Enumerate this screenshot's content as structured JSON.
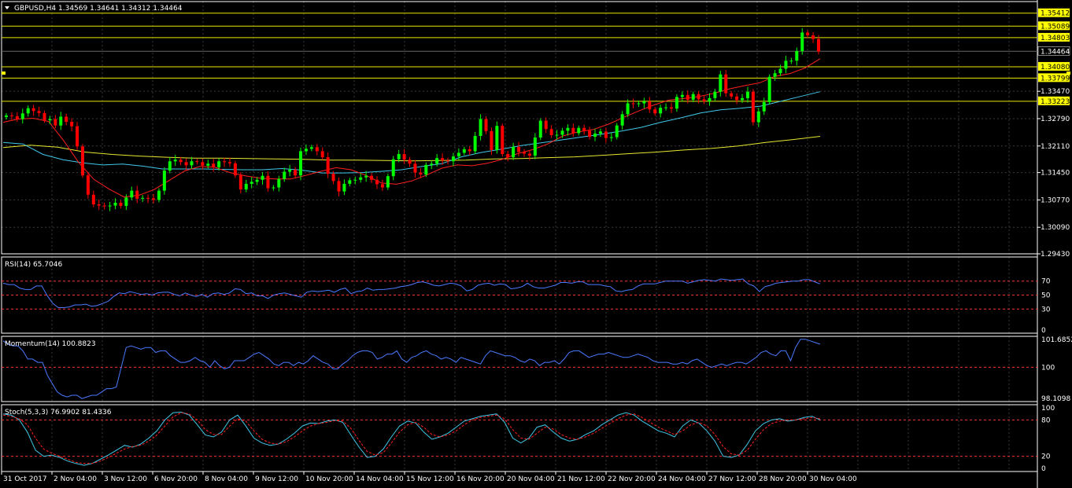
{
  "colors": {
    "background": "#000000",
    "grid": "#3a3a3a",
    "frame": "#ffffff",
    "bull": "#00ff00",
    "bear": "#ff0000",
    "ma_fast": "#ff2020",
    "ma_mid": "#40c8e8",
    "ma_slow": "#e8e830",
    "level": "#e8e800",
    "rsi": "#4a7aff",
    "momentum": "#4a7aff",
    "stoch_main": "#40c8e8",
    "stoch_signal": "#ff2020",
    "ref_line": "#ff3030",
    "text": "#ffffff",
    "level_tag_bg": "#ffff00",
    "level_tag_text": "#000000",
    "current_tag_bg": "#000000",
    "current_tag_text": "#ffffff"
  },
  "chart_data": [
    {
      "type": "candlestick",
      "title": "GBPUSD,H4  1.34569 1.34641 1.34312 1.34464",
      "price_ticks": [
        "1.33470",
        "1.32790",
        "1.32110",
        "1.31450",
        "1.30770",
        "1.30090",
        "1.29430"
      ],
      "ylim": [
        1.2943,
        1.357
      ],
      "levels": [
        "1.35412",
        "1.35089",
        "1.34803",
        "1.34080",
        "1.33799",
        "1.33223"
      ],
      "current_price": "1.34464",
      "x_labels": [
        "31 Oct 2017",
        "2 Nov 04:00",
        "3 Nov 12:00",
        "6 Nov 20:00",
        "8 Nov 04:00",
        "9 Nov 12:00",
        "10 Nov 20:00",
        "14 Nov 04:00",
        "15 Nov 12:00",
        "16 Nov 20:00",
        "20 Nov 04:00",
        "21 Nov 12:00",
        "22 Nov 20:00",
        "24 Nov 04:00",
        "27 Nov 12:00",
        "28 Nov 20:00",
        "30 Nov 04:00"
      ],
      "closes": [
        1.3287,
        1.3285,
        1.3278,
        1.3292,
        1.3305,
        1.3298,
        1.3293,
        1.3275,
        1.3278,
        1.3262,
        1.3284,
        1.3271,
        1.326,
        1.321,
        1.3138,
        1.309,
        1.3066,
        1.3063,
        1.3061,
        1.3063,
        1.307,
        1.3062,
        1.3083,
        1.31,
        1.308,
        1.3082,
        1.3081,
        1.3077,
        1.31,
        1.315,
        1.3173,
        1.3177,
        1.3171,
        1.3163,
        1.3173,
        1.3171,
        1.3162,
        1.3167,
        1.3158,
        1.3173,
        1.3171,
        1.3168,
        1.3138,
        1.3103,
        1.3117,
        1.3122,
        1.3127,
        1.3137,
        1.3106,
        1.3108,
        1.3129,
        1.3147,
        1.3152,
        1.3138,
        1.3198,
        1.3204,
        1.3208,
        1.3198,
        1.3183,
        1.3142,
        1.3124,
        1.3098,
        1.3117,
        1.3126,
        1.3127,
        1.3133,
        1.3137,
        1.3127,
        1.3116,
        1.3108,
        1.3136,
        1.3178,
        1.3191,
        1.3177,
        1.3167,
        1.3145,
        1.314,
        1.3164,
        1.3167,
        1.3181,
        1.3175,
        1.3173,
        1.3185,
        1.3194,
        1.3203,
        1.3198,
        1.3236,
        1.3278,
        1.3248,
        1.3201,
        1.3261,
        1.3191,
        1.3183,
        1.3209,
        1.3196,
        1.3192,
        1.3187,
        1.3232,
        1.3274,
        1.3253,
        1.3238,
        1.3239,
        1.3249,
        1.3256,
        1.3243,
        1.3256,
        1.3249,
        1.3234,
        1.3242,
        1.3247,
        1.3231,
        1.3233,
        1.3262,
        1.329,
        1.3317,
        1.3316,
        1.3317,
        1.3322,
        1.3302,
        1.3292,
        1.3306,
        1.3307,
        1.3304,
        1.3333,
        1.3338,
        1.3326,
        1.334,
        1.3327,
        1.3322,
        1.333,
        1.3346,
        1.3389,
        1.3342,
        1.3334,
        1.3325,
        1.333,
        1.3346,
        1.327,
        1.3297,
        1.332,
        1.3383,
        1.3392,
        1.3403,
        1.3423,
        1.3423,
        1.3447,
        1.3493,
        1.3486,
        1.3477,
        1.3446
      ],
      "ma_fast": [
        1.327,
        1.3278,
        1.328,
        1.3272,
        1.3224,
        1.317,
        1.3128,
        1.3104,
        1.3084,
        1.3089,
        1.3103,
        1.3126,
        1.3149,
        1.316,
        1.3158,
        1.3145,
        1.3137,
        1.3131,
        1.3129,
        1.3129,
        1.3138,
        1.3148,
        1.3157,
        1.3152,
        1.3138,
        1.3119,
        1.3116,
        1.3124,
        1.3139,
        1.3156,
        1.3164,
        1.3162,
        1.3168,
        1.3178,
        1.3192,
        1.3202,
        1.3216,
        1.3236,
        1.3246,
        1.3252,
        1.3265,
        1.3282,
        1.3298,
        1.3313,
        1.3325,
        1.3329,
        1.3334,
        1.3342,
        1.3353,
        1.3361,
        1.3368,
        1.3384,
        1.3391,
        1.3405,
        1.3428
      ],
      "ma_mid": [
        1.322,
        1.3216,
        1.319,
        1.3177,
        1.3169,
        1.3164,
        1.3166,
        1.3161,
        1.3154,
        1.3154,
        1.3154,
        1.3153,
        1.3152,
        1.3152,
        1.3155,
        1.3151,
        1.3144,
        1.3144,
        1.3145,
        1.3148,
        1.3152,
        1.316,
        1.3167,
        1.3184,
        1.3195,
        1.3203,
        1.3212,
        1.3219,
        1.3226,
        1.3233,
        1.324,
        1.3248,
        1.3257,
        1.327,
        1.3281,
        1.3293,
        1.3301,
        1.3305,
        1.331,
        1.3322,
        1.3334,
        1.3346
      ],
      "ma_slow": [
        1.3207,
        1.3213,
        1.3208,
        1.3196,
        1.319,
        1.3186,
        1.3183,
        1.3181,
        1.3181,
        1.318,
        1.3179,
        1.3178,
        1.3176,
        1.3176,
        1.3175,
        1.3174,
        1.3175,
        1.3176,
        1.3179,
        1.318,
        1.3182,
        1.3184,
        1.3188,
        1.3192,
        1.3196,
        1.3201,
        1.3205,
        1.3211,
        1.322,
        1.3227,
        1.3235
      ],
      "candles_note": ""
    },
    {
      "type": "line",
      "title": "RSI(14) 65.7046",
      "ylim": [
        0,
        100
      ],
      "ticks": [
        "70",
        "50",
        "30",
        "0"
      ],
      "levels": [
        70,
        50,
        30
      ],
      "values": [
        67,
        65,
        65,
        60,
        58,
        58,
        63,
        63,
        49,
        38,
        32,
        32,
        33,
        36,
        36,
        37,
        34,
        35,
        38,
        41,
        48,
        53,
        52,
        55,
        53,
        51,
        52,
        50,
        53,
        54,
        54,
        51,
        49,
        53,
        50,
        48,
        51,
        47,
        52,
        53,
        51,
        53,
        59,
        58,
        52,
        53,
        49,
        49,
        45,
        50,
        52,
        53,
        51,
        49,
        47,
        54,
        56,
        55,
        56,
        57,
        54,
        58,
        60,
        52,
        55,
        56,
        60,
        57,
        58,
        58,
        59,
        60,
        62,
        63,
        65,
        68,
        69,
        67,
        64,
        63,
        65,
        67,
        66,
        63,
        56,
        58,
        64,
        66,
        67,
        64,
        66,
        65,
        59,
        60,
        62,
        67,
        62,
        60,
        60,
        62,
        64,
        68,
        68,
        67,
        69,
        69,
        65,
        65,
        65,
        63,
        62,
        56,
        55,
        57,
        58,
        63,
        66,
        66,
        66,
        68,
        70,
        70,
        70,
        70,
        67,
        69,
        71,
        72,
        71,
        70,
        73,
        72,
        71,
        72,
        73,
        66,
        63,
        55,
        62,
        64,
        67,
        68,
        69,
        70,
        70,
        72,
        72,
        69,
        66
      ],
      "name": ""
    },
    {
      "type": "line",
      "title": "Momentum(14) 100.8823",
      "ylim": [
        98.1098,
        101.6852
      ],
      "ticks": [
        "101.6852",
        "100",
        "98.1098"
      ],
      "levels": [
        100
      ],
      "values": [
        101.6,
        101.4,
        101.3,
        101.3,
        101.0,
        100.5,
        100.5,
        100.3,
        100.3,
        99.5,
        99.0,
        98.5,
        98.3,
        98.2,
        98.3,
        98.3,
        98.1,
        98.2,
        98.3,
        98.3,
        98.5,
        98.7,
        98.7,
        98.8,
        100.0,
        101.2,
        101.3,
        101.2,
        101.1,
        101.2,
        101.2,
        100.9,
        101.0,
        101.0,
        100.7,
        100.5,
        100.3,
        100.3,
        100.4,
        100.6,
        100.4,
        100.3,
        100.0,
        100.4,
        100.1,
        99.9,
        100.0,
        100.4,
        100.4,
        100.4,
        100.6,
        100.8,
        100.9,
        100.7,
        100.5,
        100.2,
        100.1,
        100.3,
        100.3,
        100.1,
        100.3,
        100.2,
        100.4,
        100.7,
        100.5,
        100.3,
        100.2,
        99.9,
        99.9,
        100.2,
        100.4,
        100.7,
        100.9,
        101.0,
        101.0,
        100.9,
        100.5,
        100.6,
        100.8,
        100.8,
        101.0,
        100.5,
        100.3,
        100.6,
        100.7,
        100.9,
        101.0,
        100.8,
        100.7,
        100.5,
        100.6,
        100.5,
        100.3,
        100.6,
        100.5,
        100.4,
        100.3,
        100.2,
        100.7,
        101.0,
        100.9,
        100.8,
        100.7,
        100.7,
        100.6,
        100.4,
        100.3,
        100.5,
        100.4,
        100.1,
        100.3,
        100.3,
        100.4,
        100.2,
        100.5,
        100.9,
        101.0,
        101.0,
        100.8,
        100.6,
        100.7,
        100.8,
        100.8,
        100.9,
        100.8,
        100.7,
        100.6,
        100.6,
        100.7,
        100.8,
        100.7,
        100.6,
        100.4,
        100.3,
        100.3,
        100.3,
        100.2,
        100.2,
        100.3,
        100.2,
        100.4,
        100.5,
        100.3,
        100.1,
        100.0,
        100.1,
        100.2,
        100.1,
        100.2,
        100.3,
        100.3,
        100.2,
        100.4,
        100.6,
        100.9,
        101.0,
        100.8,
        100.7,
        101.0,
        101.0,
        100.4,
        101.2,
        101.7,
        101.7,
        101.6,
        101.5,
        101.4
      ]
    },
    {
      "type": "line",
      "title": "Stoch(5,3,3) 76.9902 81.4336",
      "ylim": [
        0,
        100
      ],
      "ticks": [
        "100",
        "80",
        "20",
        "0"
      ],
      "levels": [
        80,
        20
      ],
      "main": [
        90,
        88,
        80,
        60,
        30,
        20,
        22,
        18,
        12,
        8,
        5,
        8,
        15,
        22,
        30,
        38,
        35,
        40,
        50,
        62,
        80,
        92,
        93,
        88,
        72,
        55,
        52,
        60,
        80,
        88,
        70,
        50,
        42,
        38,
        40,
        48,
        58,
        70,
        75,
        74,
        78,
        80,
        76,
        55,
        35,
        18,
        20,
        32,
        52,
        70,
        78,
        75,
        60,
        48,
        52,
        58,
        68,
        78,
        82,
        86,
        88,
        90,
        76,
        50,
        42,
        50,
        68,
        72,
        60,
        50,
        45,
        48,
        56,
        62,
        72,
        80,
        88,
        92,
        88,
        78,
        70,
        62,
        58,
        52,
        70,
        80,
        75,
        62,
        45,
        20,
        18,
        22,
        40,
        62,
        74,
        80,
        82,
        78,
        80,
        84,
        86,
        80
      ],
      "signal": [
        88,
        86,
        82,
        72,
        50,
        32,
        25,
        20,
        15,
        10,
        8,
        8,
        12,
        18,
        25,
        32,
        36,
        38,
        45,
        55,
        70,
        85,
        92,
        90,
        80,
        64,
        56,
        56,
        70,
        82,
        78,
        62,
        48,
        42,
        40,
        44,
        52,
        62,
        70,
        74,
        76,
        79,
        78,
        66,
        46,
        28,
        22,
        26,
        42,
        60,
        72,
        76,
        68,
        56,
        52,
        55,
        62,
        72,
        80,
        84,
        86,
        88,
        82,
        64,
        50,
        48,
        58,
        68,
        65,
        56,
        50,
        48,
        52,
        58,
        66,
        74,
        82,
        88,
        90,
        84,
        76,
        68,
        62,
        56,
        62,
        72,
        76,
        70,
        56,
        36,
        24,
        22,
        30,
        48,
        64,
        74,
        78,
        80,
        80,
        82,
        84,
        82
      ]
    }
  ]
}
